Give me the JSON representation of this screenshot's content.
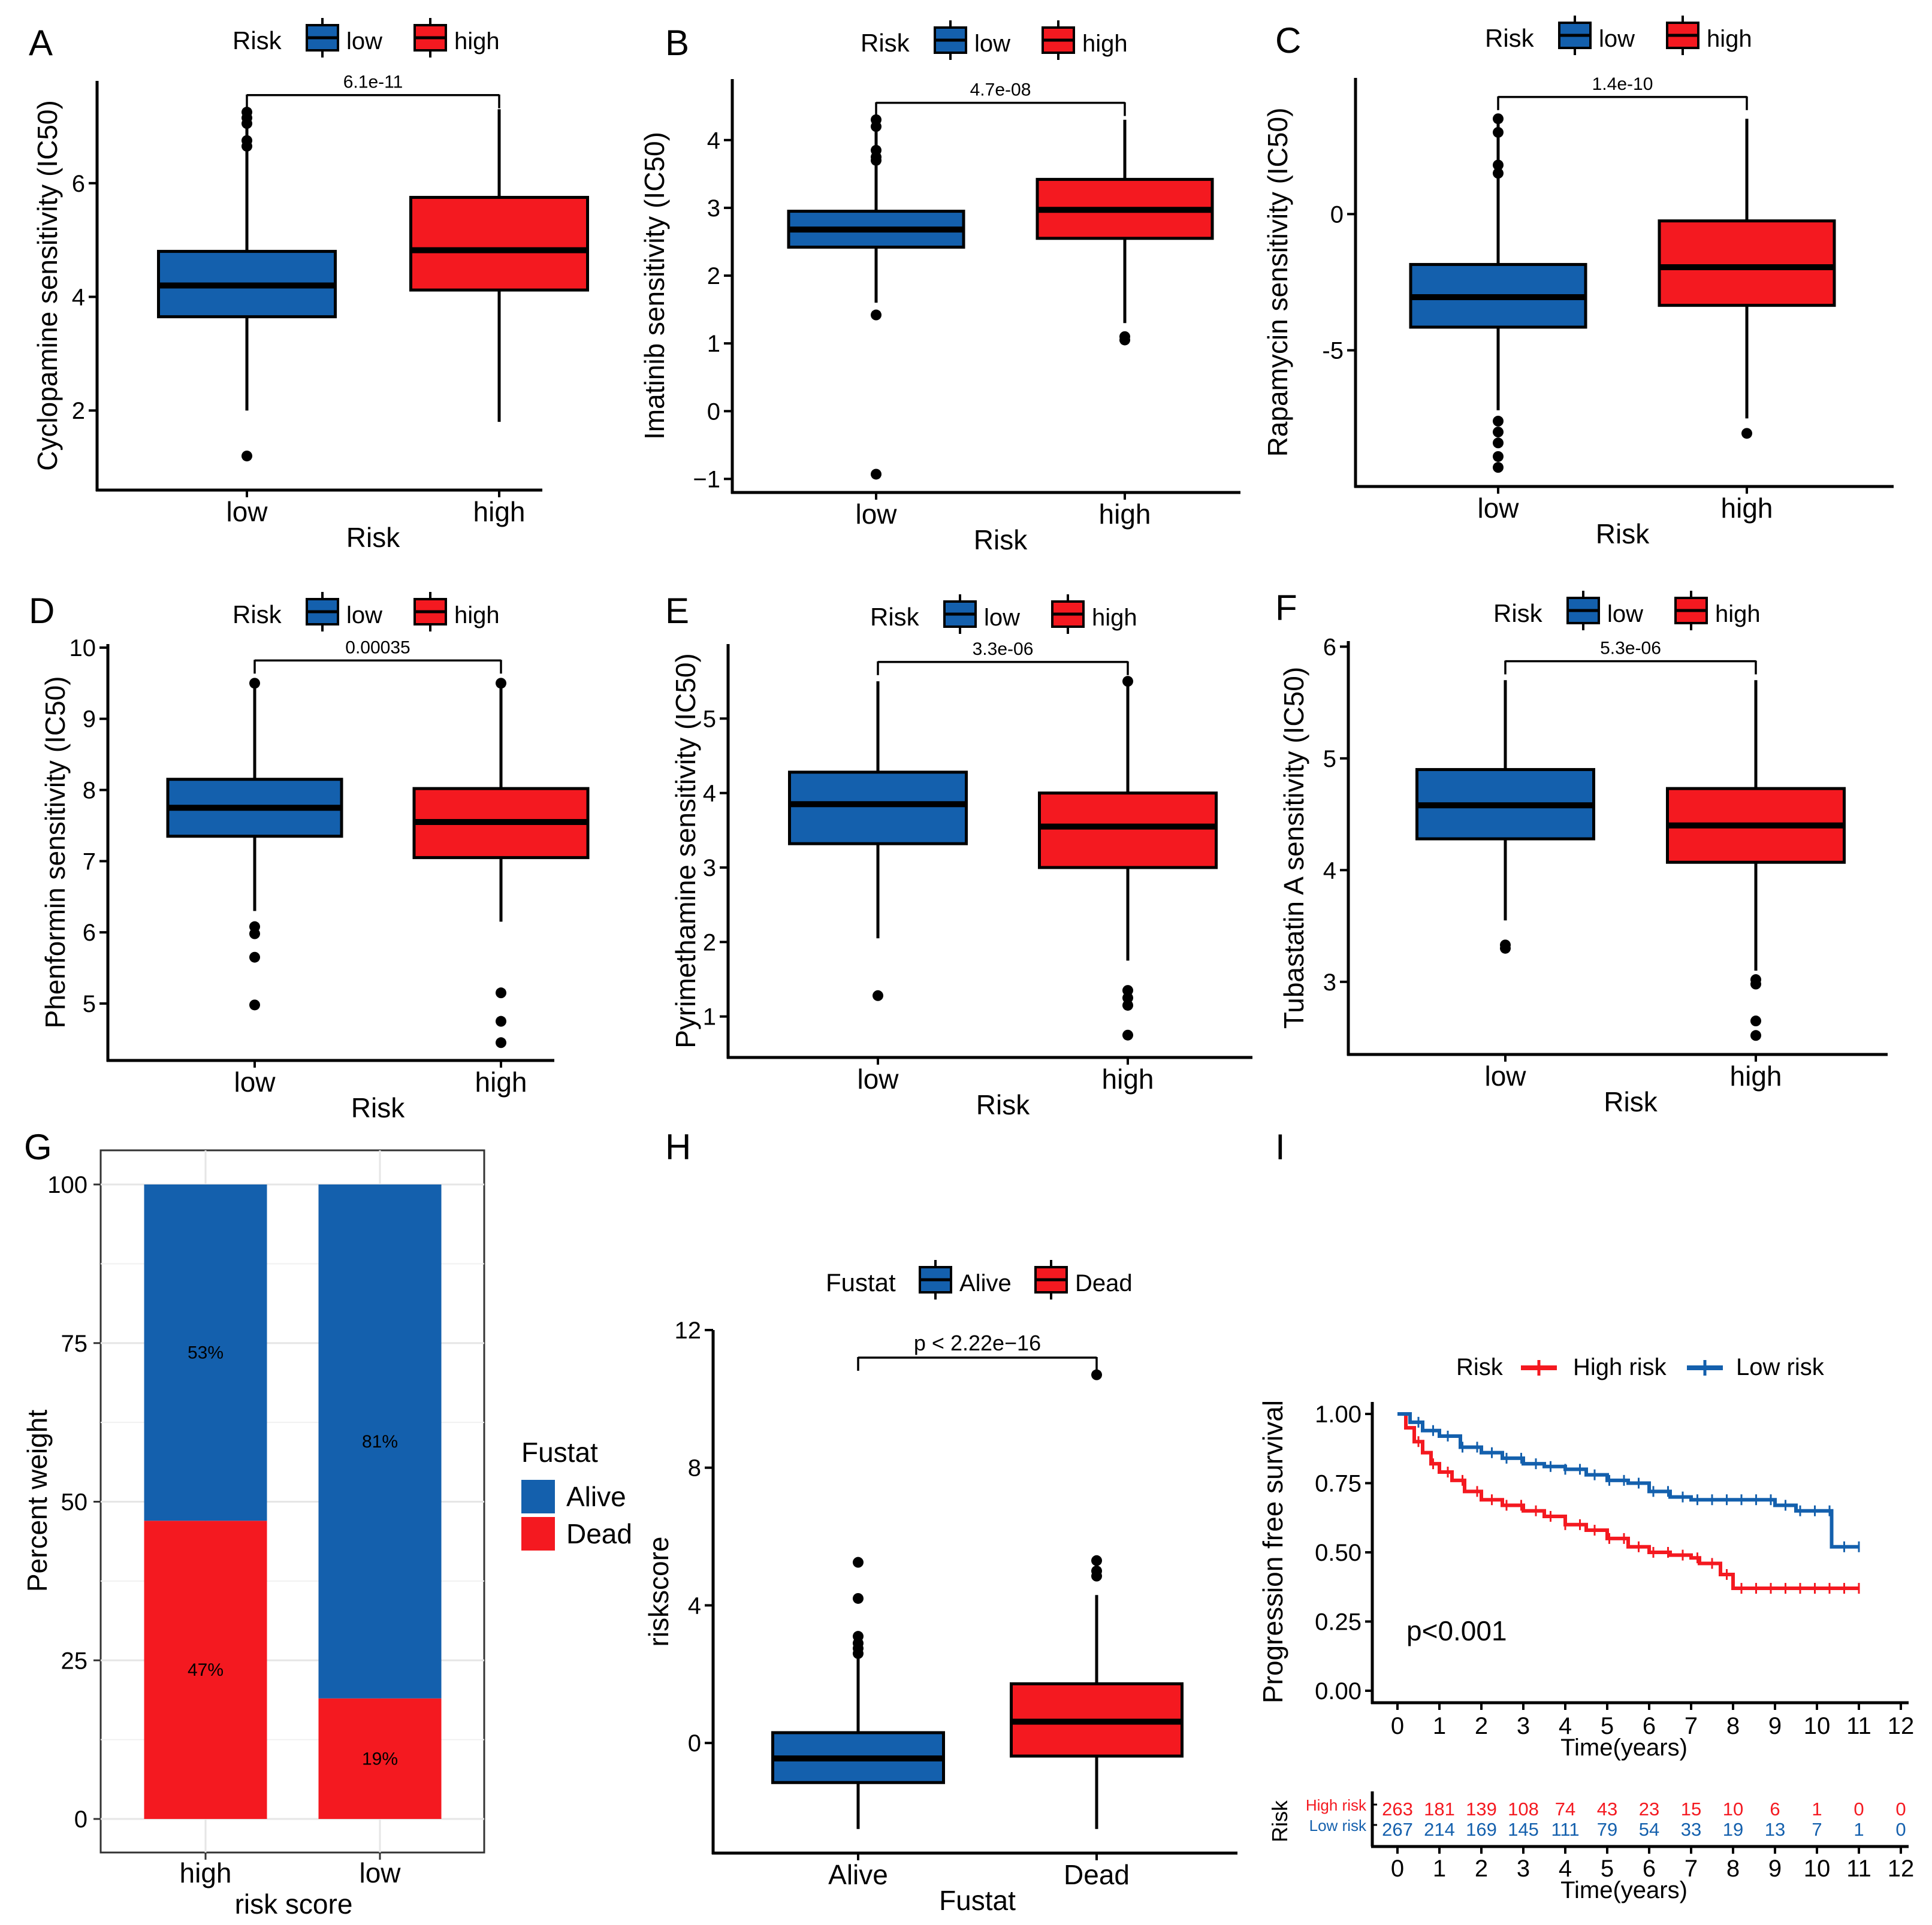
{
  "colors": {
    "low": "#1460ad",
    "high": "#f41920",
    "axis": "#000000",
    "grid": "#e6e6e6"
  },
  "chart_data": [
    {
      "panel": "A",
      "type": "boxplot",
      "legend_title": "Risk",
      "legend_items": [
        "low",
        "high"
      ],
      "categories": [
        "low",
        "high"
      ],
      "xlabel": "Risk",
      "ylabel": "Cyclopamine sensitivity (IC50)",
      "ylim": [
        0.6,
        7.8
      ],
      "yticks": [
        2,
        4,
        6
      ],
      "ytick_labels": [
        "2",
        "4",
        "6"
      ],
      "boxes": [
        {
          "name": "low",
          "q1": 3.65,
          "median": 4.2,
          "q3": 4.8,
          "whisker_low": 2.0,
          "whisker_high": 7.3,
          "outliers": [
            7.25,
            7.15,
            7.05,
            6.75,
            6.65,
            1.2
          ]
        },
        {
          "name": "high",
          "q1": 4.12,
          "median": 4.82,
          "q3": 5.75,
          "whisker_low": 1.8,
          "whisker_high": 7.3,
          "outliers": []
        }
      ],
      "pvalue": "6.1e-11",
      "pvalue_bracket_y": 7.55
    },
    {
      "panel": "B",
      "type": "boxplot",
      "legend_title": "Risk",
      "legend_items": [
        "low",
        "high"
      ],
      "categories": [
        "low",
        "high"
      ],
      "xlabel": "Risk",
      "ylabel": "Imatinib sensitivity (IC50)",
      "ylim": [
        -1.2,
        4.9
      ],
      "yticks": [
        -1,
        0,
        1,
        2,
        3,
        4
      ],
      "ytick_labels": [
        "−1",
        "0",
        "1",
        "2",
        "3",
        "4"
      ],
      "boxes": [
        {
          "name": "low",
          "q1": 2.42,
          "median": 2.68,
          "q3": 2.95,
          "whisker_low": 1.6,
          "whisker_high": 4.3,
          "outliers": [
            4.3,
            4.2,
            3.85,
            3.75,
            3.7,
            1.42,
            -0.93
          ]
        },
        {
          "name": "high",
          "q1": 2.55,
          "median": 2.97,
          "q3": 3.42,
          "whisker_low": 1.3,
          "whisker_high": 4.3,
          "outliers": [
            1.1,
            1.05
          ]
        }
      ],
      "pvalue": "4.7e-08",
      "pvalue_bracket_y": 4.55
    },
    {
      "panel": "C",
      "type": "boxplot",
      "legend_title": "Risk",
      "legend_items": [
        "low",
        "high"
      ],
      "categories": [
        "low",
        "high"
      ],
      "xlabel": "Risk",
      "ylabel": "Rapamycin sensitivity (IC50)",
      "ylim": [
        -10,
        5
      ],
      "yticks": [
        -5,
        0
      ],
      "ytick_labels": [
        "-5",
        "0"
      ],
      "boxes": [
        {
          "name": "low",
          "q1": -4.15,
          "median": -3.05,
          "q3": -1.85,
          "whisker_low": -7.2,
          "whisker_high": 3.5,
          "outliers": [
            3.5,
            3.0,
            1.8,
            1.5,
            -7.6,
            -8.0,
            -8.4,
            -8.9,
            -9.3
          ]
        },
        {
          "name": "high",
          "q1": -3.35,
          "median": -1.95,
          "q3": -0.25,
          "whisker_low": -7.5,
          "whisker_high": 3.5,
          "outliers": [
            -8.05
          ]
        }
      ],
      "pvalue": "1.4e-10",
      "pvalue_bracket_y": 4.3
    },
    {
      "panel": "D",
      "type": "boxplot",
      "legend_title": "Risk",
      "legend_items": [
        "low",
        "high"
      ],
      "categories": [
        "low",
        "high"
      ],
      "xlabel": "Risk",
      "ylabel": "Phenformin sensitivity (IC50)",
      "ylim": [
        4.2,
        10.05
      ],
      "yticks": [
        5,
        6,
        7,
        8,
        9,
        10
      ],
      "ytick_labels": [
        "5",
        "6",
        "7",
        "8",
        "9",
        "10"
      ],
      "boxes": [
        {
          "name": "low",
          "q1": 7.35,
          "median": 7.75,
          "q3": 8.15,
          "whisker_low": 6.3,
          "whisker_high": 9.5,
          "outliers": [
            9.5,
            6.08,
            5.98,
            5.65,
            4.98
          ]
        },
        {
          "name": "high",
          "q1": 7.05,
          "median": 7.55,
          "q3": 8.02,
          "whisker_low": 6.15,
          "whisker_high": 9.5,
          "outliers": [
            9.5,
            5.15,
            4.75,
            4.45
          ]
        }
      ],
      "pvalue": "0.00035",
      "pvalue_bracket_y": 9.82
    },
    {
      "panel": "E",
      "type": "boxplot",
      "legend_title": "Risk",
      "legend_items": [
        "low",
        "high"
      ],
      "categories": [
        "low",
        "high"
      ],
      "xlabel": "Risk",
      "ylabel": "Pyrimethamine sensitivity (IC50)",
      "ylim": [
        0.45,
        6.0
      ],
      "yticks": [
        1,
        2,
        3,
        4,
        5
      ],
      "ytick_labels": [
        "1",
        "2",
        "3",
        "4",
        "5"
      ],
      "boxes": [
        {
          "name": "low",
          "q1": 3.32,
          "median": 3.85,
          "q3": 4.28,
          "whisker_low": 2.05,
          "whisker_high": 5.5,
          "outliers": [
            1.28
          ]
        },
        {
          "name": "high",
          "q1": 3.0,
          "median": 3.55,
          "q3": 4.0,
          "whisker_low": 1.75,
          "whisker_high": 5.5,
          "outliers": [
            5.5,
            1.35,
            1.25,
            1.15,
            0.75
          ]
        }
      ],
      "pvalue": "3.3e-06",
      "pvalue_bracket_y": 5.76
    },
    {
      "panel": "F",
      "type": "boxplot",
      "legend_title": "Risk",
      "legend_items": [
        "low",
        "high"
      ],
      "categories": [
        "low",
        "high"
      ],
      "xlabel": "Risk",
      "ylabel": "Tubastatin A sensitivity (IC50)",
      "ylim": [
        2.35,
        6.05
      ],
      "yticks": [
        3,
        4,
        5,
        6
      ],
      "ytick_labels": [
        "3",
        "4",
        "5",
        "6"
      ],
      "boxes": [
        {
          "name": "low",
          "q1": 4.28,
          "median": 4.58,
          "q3": 4.9,
          "whisker_low": 3.55,
          "whisker_high": 5.7,
          "outliers": [
            3.33,
            3.3
          ]
        },
        {
          "name": "high",
          "q1": 4.07,
          "median": 4.4,
          "q3": 4.73,
          "whisker_low": 3.1,
          "whisker_high": 5.7,
          "outliers": [
            3.02,
            2.98,
            2.65,
            2.52
          ]
        }
      ],
      "pvalue": "5.3e-06",
      "pvalue_bracket_y": 5.87
    },
    {
      "panel": "G",
      "type": "stacked-bar",
      "categories": [
        "high",
        "low"
      ],
      "xlabel": "risk score",
      "ylabel": "Percent weight",
      "ylim": [
        0,
        100
      ],
      "yticks": [
        0,
        25,
        50,
        75,
        100
      ],
      "ytick_labels": [
        "0",
        "25",
        "50",
        "75",
        "100"
      ],
      "legend_title": "Fustat",
      "series": [
        {
          "name": "Alive",
          "values": [
            53,
            81
          ],
          "labels": [
            "53%",
            "81%"
          ]
        },
        {
          "name": "Dead",
          "values": [
            47,
            19
          ],
          "labels": [
            "47%",
            "19%"
          ]
        }
      ]
    },
    {
      "panel": "H",
      "type": "boxplot",
      "legend_title": "Fustat",
      "legend_items": [
        "Alive",
        "Dead"
      ],
      "categories": [
        "Alive",
        "Dead"
      ],
      "xlabel": "Fustat",
      "ylabel": "riskscore",
      "ylim": [
        -3.2,
        12.0
      ],
      "yticks": [
        0,
        4,
        8,
        12
      ],
      "ytick_labels": [
        "0",
        "4",
        "8",
        "12"
      ],
      "boxes": [
        {
          "name": "Alive",
          "q1": -1.15,
          "median": -0.45,
          "q3": 0.3,
          "whisker_low": -2.5,
          "whisker_high": 2.45,
          "outliers": [
            5.25,
            4.2,
            3.1,
            2.9,
            2.75,
            2.6
          ]
        },
        {
          "name": "Dead",
          "q1": -0.38,
          "median": 0.62,
          "q3": 1.72,
          "whisker_low": -2.5,
          "whisker_high": 4.3,
          "outliers": [
            10.7,
            5.3,
            5.0,
            4.85
          ]
        }
      ],
      "pvalue": "p < 2.22e−16",
      "pvalue_bracket_y": 11.2
    },
    {
      "panel": "I",
      "type": "kaplan-meier",
      "legend_title": "Risk",
      "legend_items": [
        "High risk",
        "Low risk"
      ],
      "xlabel": "Time(years)",
      "ylabel": "Progression free survival",
      "xlim": [
        0,
        12
      ],
      "xticks": [
        0,
        1,
        2,
        3,
        4,
        5,
        6,
        7,
        8,
        9,
        10,
        11,
        12
      ],
      "ylim": [
        0,
        1
      ],
      "yticks": [
        0,
        0.25,
        0.5,
        0.75,
        1
      ],
      "ytick_labels": [
        "0.00",
        "0.25",
        "0.50",
        "0.75",
        "1.00"
      ],
      "pvalue": "p<0.001",
      "series": [
        {
          "name": "High risk",
          "time": [
            0,
            0.2,
            0.4,
            0.6,
            0.8,
            1.0,
            1.3,
            1.6,
            2.0,
            2.5,
            3.0,
            3.5,
            4.0,
            4.5,
            5.0,
            5.5,
            6.0,
            6.5,
            7.0,
            7.2,
            7.5,
            7.7,
            8.0,
            9.0,
            10.0,
            11.0
          ],
          "survival": [
            1.0,
            0.95,
            0.9,
            0.86,
            0.82,
            0.79,
            0.76,
            0.72,
            0.69,
            0.67,
            0.65,
            0.63,
            0.6,
            0.58,
            0.55,
            0.52,
            0.5,
            0.49,
            0.48,
            0.46,
            0.46,
            0.42,
            0.37,
            0.37,
            0.37,
            0.37
          ]
        },
        {
          "name": "Low risk",
          "time": [
            0,
            0.3,
            0.6,
            1.0,
            1.5,
            2.0,
            2.5,
            3.0,
            3.5,
            4.0,
            4.5,
            5.0,
            5.5,
            6.0,
            6.5,
            7.0,
            8.0,
            8.5,
            9.0,
            9.5,
            10.0,
            10.3,
            10.35,
            11.0
          ],
          "survival": [
            1.0,
            0.97,
            0.94,
            0.92,
            0.88,
            0.86,
            0.84,
            0.82,
            0.81,
            0.8,
            0.78,
            0.76,
            0.75,
            0.72,
            0.7,
            0.69,
            0.69,
            0.69,
            0.67,
            0.65,
            0.65,
            0.65,
            0.52,
            0.52
          ]
        }
      ],
      "risk_table": {
        "label": "Risk",
        "xlabel": "Time(years)",
        "rows": [
          {
            "name": "High risk",
            "counts": [
              "263",
              "181",
              "139",
              "108",
              "74",
              "43",
              "23",
              "15",
              "10",
              "6",
              "1",
              "0",
              "0"
            ]
          },
          {
            "name": "Low risk",
            "counts": [
              "267",
              "214",
              "169",
              "145",
              "111",
              "79",
              "54",
              "33",
              "19",
              "13",
              "7",
              "1",
              "0"
            ]
          }
        ]
      }
    }
  ]
}
